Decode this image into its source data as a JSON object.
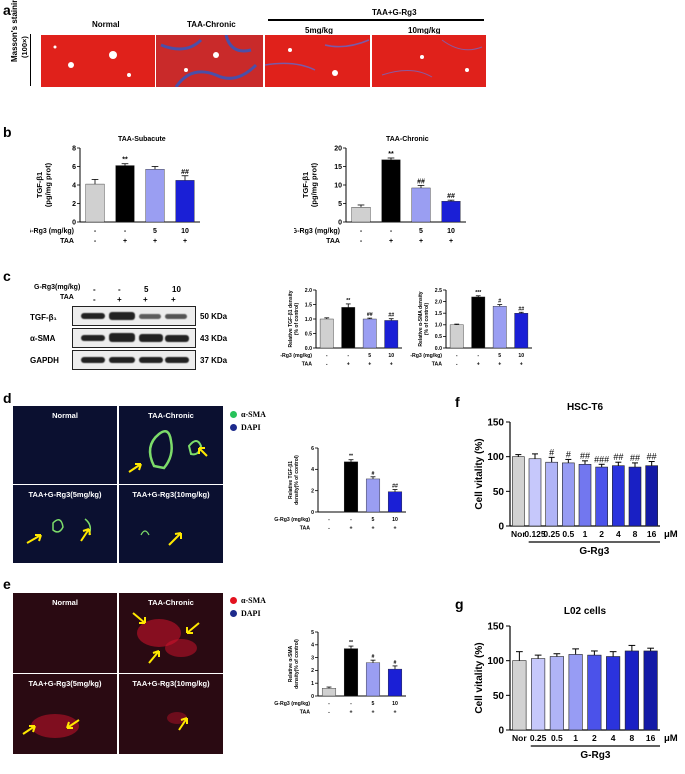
{
  "colors": {
    "gray": "#d0d0d0",
    "black": "#000000",
    "lav": "#9a9ef2",
    "blue": "#1a1fd6"
  },
  "a": {
    "letter": "a",
    "row_label": "Masson's staining",
    "row_sub": "(100×)",
    "group_label": "TAA+G-Rg3",
    "cols": [
      "Normal",
      "TAA-Chronic",
      "5mg/kg",
      "10mg/kg"
    ]
  },
  "b": {
    "letter": "b",
    "left_title": "TAA-Subacute",
    "right_title": "TAA-Chronic",
    "ylabel": "TGF-β1",
    "yunit": "(pg/mg prot)",
    "row1_label": "G-Rg3 (mg/kg)",
    "row2_label": "TAA",
    "row1": [
      "-",
      "-",
      "5",
      "10"
    ],
    "row2": [
      "-",
      "+",
      "+",
      "+"
    ]
  },
  "c": {
    "letter": "c",
    "g_label": "G-Rg3(mg/kg)",
    "taa_label": "TAA",
    "g_vals": [
      "-",
      "-",
      "5",
      "10"
    ],
    "taa_vals": [
      "-",
      "+",
      "+",
      "+"
    ],
    "rows": [
      {
        "name": "TGF-β₁",
        "kda": "50 KDa"
      },
      {
        "name": "α-SMA",
        "kda": "43 KDa"
      },
      {
        "name": "GAPDH",
        "kda": "37 KDa"
      }
    ],
    "tgf_ylabel": "Relative TGF-β1 density",
    "sma_ylabel": "Relative α-SMA density",
    "ysub": "(% of control)",
    "row1_label": "G-Rg3 (mg/kg)",
    "row2_label": "TAA",
    "row1": [
      "-",
      "-",
      "5",
      "10"
    ],
    "row2": [
      "-",
      "+",
      "+",
      "+"
    ]
  },
  "d": {
    "letter": "d",
    "tiles": [
      "Normal",
      "TAA-Chronic",
      "TAA+G-Rg3(5mg/kg)",
      "TAA+G-Rg3(10mg/kg)"
    ],
    "legend": [
      "α-SMA",
      "DAPI"
    ],
    "ylabel": "Relative TGF-β1",
    "ysub": "density(% of control)",
    "row1_label": "G-Rg3 (mg/kg)",
    "row2_label": "TAA",
    "row1": [
      "-",
      "-",
      "5",
      "10"
    ],
    "row2": [
      "-",
      "+",
      "+",
      "+"
    ]
  },
  "e": {
    "letter": "e",
    "tiles": [
      "Normal",
      "TAA-Chronic",
      "TAA+G-Rg3(5mg/kg)",
      "TAA+G-Rg3(10mg/kg)"
    ],
    "legend": [
      "α-SMA",
      "DAPI"
    ],
    "ylabel": "Relative α-SMA",
    "ysub": "density(% of control)",
    "row1_label": "G-Rg3 (mg/kg)",
    "row2_label": "TAA",
    "row1": [
      "-",
      "-",
      "5",
      "10"
    ],
    "row2": [
      "-",
      "+",
      "+",
      "+"
    ]
  },
  "f": {
    "letter": "f",
    "title": "HSC-T6",
    "ylabel": "Cell vitality (%)",
    "unit": "μM",
    "xgroup": "G-Rg3"
  },
  "g": {
    "letter": "g",
    "title": "L02 cells",
    "ylabel": "Cell vitality (%)",
    "unit": "μM",
    "xgroup": "G-Rg3"
  },
  "chart_data": [
    {
      "id": "b-left",
      "type": "bar",
      "title": "TAA-Subacute",
      "ylabel": "TGF-β1 (pg/mg prot)",
      "ylim": [
        0,
        8
      ],
      "yticks": [
        0,
        2,
        4,
        6,
        8
      ],
      "values": [
        4.1,
        6.1,
        5.7,
        4.5
      ],
      "errors": [
        0.5,
        0.2,
        0.3,
        0.5
      ],
      "marks": [
        "",
        "**",
        "",
        "##"
      ],
      "colors": [
        "gray",
        "black",
        "lav",
        "blue"
      ]
    },
    {
      "id": "b-right",
      "type": "bar",
      "title": "TAA-Chronic",
      "ylabel": "TGF-β1 (pg/mg prot)",
      "ylim": [
        0,
        20
      ],
      "yticks": [
        0,
        5,
        10,
        15,
        20
      ],
      "values": [
        4.0,
        16.8,
        9.2,
        5.6
      ],
      "errors": [
        0.6,
        0.5,
        0.7,
        0.3
      ],
      "marks": [
        "",
        "**",
        "##",
        "##"
      ],
      "colors": [
        "gray",
        "black",
        "lav",
        "blue"
      ]
    },
    {
      "id": "c-tgf",
      "type": "bar",
      "ylabel": "Relative TGF-β1 density (% of control)",
      "ylim": [
        0,
        2
      ],
      "yticks": [
        0,
        0.5,
        1.0,
        1.5,
        2.0
      ],
      "ticklabels": [
        "0.0",
        "0.5",
        "1.0",
        "1.5",
        "2.0"
      ],
      "values": [
        1.0,
        1.4,
        1.0,
        0.95
      ],
      "errors": [
        0.04,
        0.12,
        0.03,
        0.06
      ],
      "marks": [
        "",
        "**",
        "##",
        "##"
      ],
      "colors": [
        "gray",
        "black",
        "lav",
        "blue"
      ]
    },
    {
      "id": "c-sma",
      "type": "bar",
      "ylabel": "Relative α-SMA density (% of control)",
      "ylim": [
        0,
        2.5
      ],
      "yticks": [
        0,
        0.5,
        1.0,
        1.5,
        2.0,
        2.5
      ],
      "ticklabels": [
        "0.0",
        "0.5",
        "1.0",
        "1.5",
        "2.0",
        "2.5"
      ],
      "values": [
        1.0,
        2.2,
        1.8,
        1.5
      ],
      "errors": [
        0.03,
        0.05,
        0.07,
        0.04
      ],
      "marks": [
        "",
        "***",
        "#",
        "##"
      ],
      "colors": [
        "gray",
        "black",
        "lav",
        "blue"
      ]
    },
    {
      "id": "d",
      "type": "bar",
      "ylabel": "Relative TGF-β1 density(% of control)",
      "ylim": [
        0,
        6
      ],
      "yticks": [
        0,
        2,
        4,
        6
      ],
      "values": [
        0,
        4.7,
        3.1,
        1.9
      ],
      "errors": [
        0,
        0.2,
        0.2,
        0.2
      ],
      "marks": [
        "",
        "**",
        "#",
        "##"
      ],
      "colors": [
        "gray",
        "black",
        "lav",
        "blue"
      ]
    },
    {
      "id": "e",
      "type": "bar",
      "ylabel": "Relative α-SMA density(% of control)",
      "ylim": [
        0,
        5
      ],
      "yticks": [
        0,
        1,
        2,
        3,
        4,
        5
      ],
      "values": [
        0.6,
        3.7,
        2.6,
        2.1
      ],
      "errors": [
        0.1,
        0.2,
        0.2,
        0.25
      ],
      "marks": [
        "",
        "**",
        "#",
        "#"
      ],
      "colors": [
        "gray",
        "black",
        "lav",
        "blue"
      ]
    },
    {
      "id": "f",
      "type": "bar",
      "title": "HSC-T6",
      "ylabel": "Cell vitality (%)",
      "ylim": [
        0,
        150
      ],
      "yticks": [
        0,
        50,
        100,
        150
      ],
      "categories": [
        "Nor",
        "0.125",
        "0.25",
        "0.5",
        "1",
        "2",
        "4",
        "8",
        "16"
      ],
      "values": [
        100,
        97,
        92,
        91,
        89,
        85,
        87,
        85,
        87
      ],
      "errors": [
        3,
        7,
        7,
        5,
        5,
        4,
        5,
        6,
        6
      ],
      "marks": [
        "",
        "",
        "#",
        "#",
        "##",
        "###",
        "##",
        "##",
        "##"
      ]
    },
    {
      "id": "g",
      "type": "bar",
      "title": "L02 cells",
      "ylabel": "Cell vitality (%)",
      "ylim": [
        0,
        150
      ],
      "yticks": [
        0,
        50,
        100,
        150
      ],
      "categories": [
        "Nor",
        "0.25",
        "0.5",
        "1",
        "2",
        "4",
        "8",
        "16"
      ],
      "values": [
        100,
        103,
        106,
        109,
        108,
        106,
        114,
        114
      ],
      "errors": [
        13,
        5,
        4,
        8,
        6,
        7,
        8,
        4
      ],
      "marks": [
        "",
        "",
        "",
        "",
        "",
        "",
        "",
        ""
      ]
    }
  ]
}
